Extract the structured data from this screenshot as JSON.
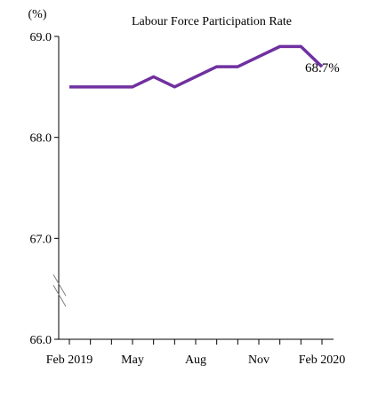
{
  "chart_data": {
    "type": "line",
    "title": "Labour Force Participation  Rate",
    "y_unit_label": "(%)",
    "xlabel": "",
    "ylabel": "",
    "ylim": [
      66.0,
      69.0
    ],
    "yticks": [
      66.0,
      67.0,
      68.0,
      69.0
    ],
    "ytick_labels": [
      "66.0",
      "67.0",
      "68.0",
      "69.0"
    ],
    "y_axis_break": true,
    "x": [
      "Feb 2019",
      "Mar 2019",
      "Apr 2019",
      "May 2019",
      "Jun 2019",
      "Jul 2019",
      "Aug 2019",
      "Sep 2019",
      "Oct 2019",
      "Nov 2019",
      "Dec 2019",
      "Jan 2020",
      "Feb 2020"
    ],
    "xtick_labels": [
      "Feb 2019",
      "May",
      "Aug",
      "Nov",
      "Feb 2020"
    ],
    "series": [
      {
        "values": [
          68.5,
          68.5,
          68.5,
          68.5,
          68.6,
          68.5,
          68.6,
          68.7,
          68.7,
          68.8,
          68.9,
          68.9,
          68.7
        ],
        "color": "#7030a0"
      }
    ],
    "end_label": "68.7%",
    "grid": false,
    "legend": "none"
  }
}
